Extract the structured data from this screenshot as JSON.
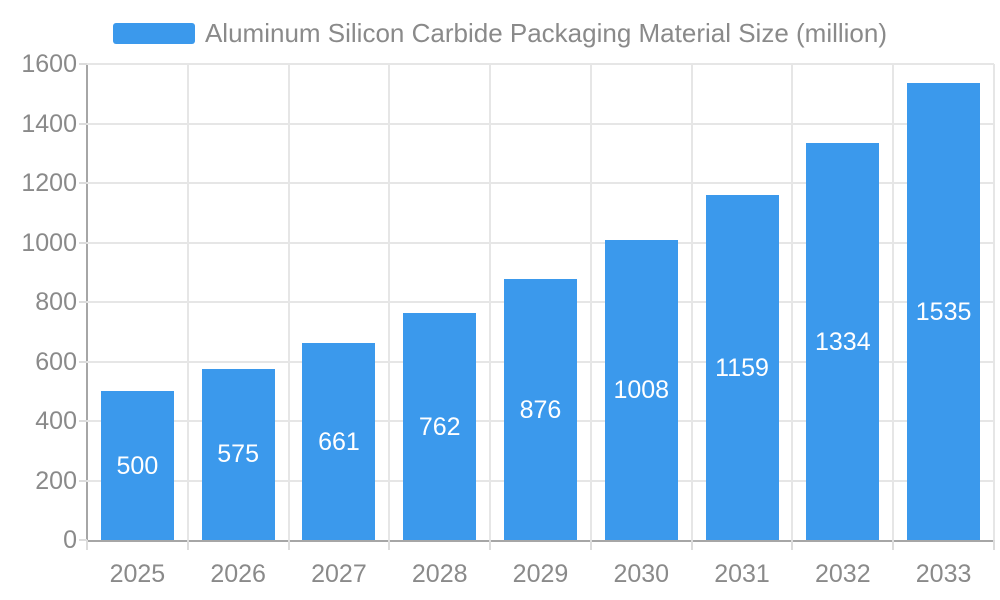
{
  "chart_data": {
    "type": "bar",
    "series_name": "Aluminum Silicon Carbide Packaging Material Size (million)",
    "categories": [
      "2025",
      "2026",
      "2027",
      "2028",
      "2029",
      "2030",
      "2031",
      "2032",
      "2033"
    ],
    "values": [
      500,
      575,
      661,
      762,
      876,
      1008,
      1159,
      1334,
      1535
    ],
    "title": "Aluminum Silicon Carbide Packaging Material Size (million)",
    "xlabel": "",
    "ylabel": "",
    "ylim": [
      0,
      1600
    ],
    "ytick_step": 200,
    "yticks": [
      0,
      200,
      400,
      600,
      800,
      1000,
      1200,
      1400,
      1600
    ],
    "grid": true,
    "legend_position": "top",
    "value_labels_shown": true,
    "colors": {
      "bar": "#3b99ec",
      "value_label": "#ffffff",
      "axis_label": "#8a8a8a",
      "legend_text": "#8a8a8a",
      "axis_line": "#a6a6a6",
      "gridline": "#e6e6e6",
      "tick": "#dcdcdc",
      "background": "#ffffff"
    }
  }
}
